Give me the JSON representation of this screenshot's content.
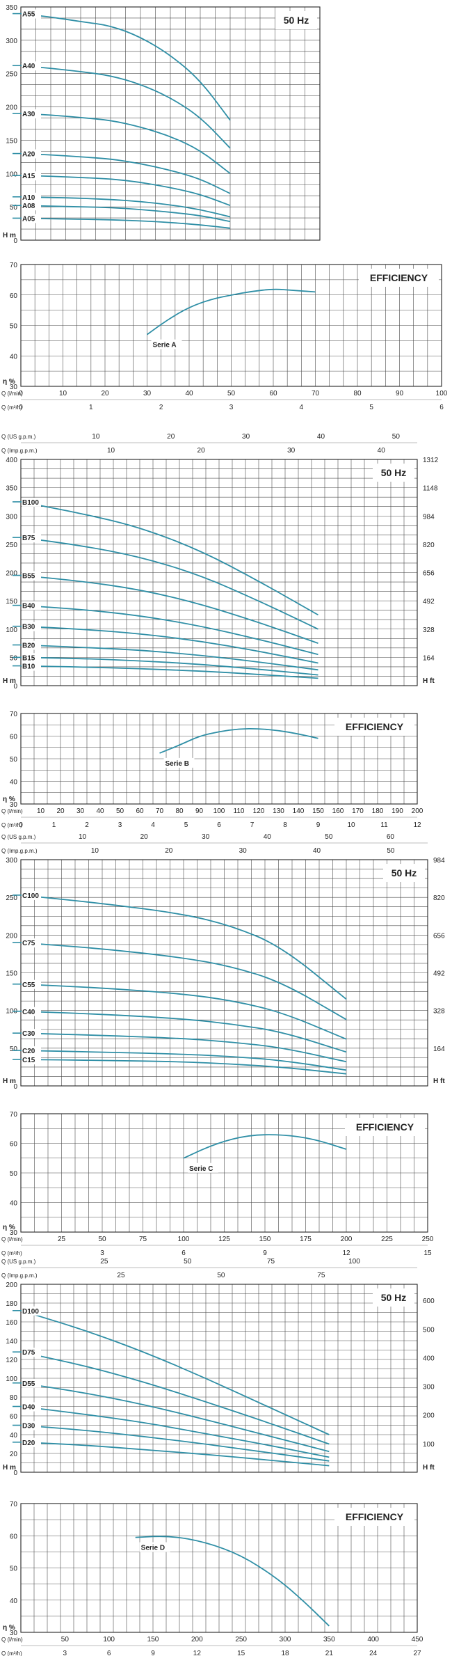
{
  "colors": {
    "curve": "#2f8fa6",
    "grid": "#4a4a4a",
    "text": "#222222",
    "minor": "#7a7a7a"
  },
  "chart_data": [
    {
      "id": "A-head",
      "type": "line",
      "badge": "50 Hz",
      "yunit": "H m",
      "ylim": [
        0,
        350
      ],
      "yticks": [
        0,
        50,
        100,
        150,
        200,
        250,
        300,
        350
      ],
      "xlim": [
        0,
        100
      ],
      "series": [
        {
          "name": "A55",
          "x": [
            0,
            10,
            20,
            30,
            40,
            50,
            60,
            70
          ],
          "values": [
            340,
            335,
            328,
            322,
            305,
            278,
            240,
            180
          ]
        },
        {
          "name": "A40",
          "x": [
            0,
            10,
            20,
            30,
            40,
            50,
            60,
            70
          ],
          "values": [
            262,
            258,
            253,
            247,
            234,
            214,
            185,
            138
          ]
        },
        {
          "name": "A30",
          "x": [
            0,
            10,
            20,
            30,
            40,
            50,
            60,
            70
          ],
          "values": [
            190,
            188,
            184,
            180,
            170,
            156,
            135,
            100
          ]
        },
        {
          "name": "A20",
          "x": [
            0,
            10,
            20,
            30,
            40,
            50,
            60,
            70
          ],
          "values": [
            130,
            128,
            125,
            122,
            115,
            105,
            92,
            70
          ]
        },
        {
          "name": "A15",
          "x": [
            0,
            10,
            20,
            30,
            40,
            50,
            60,
            70
          ],
          "values": [
            97,
            96,
            94,
            92,
            87,
            79,
            69,
            52
          ]
        },
        {
          "name": "A10",
          "x": [
            0,
            10,
            20,
            30,
            40,
            50,
            60,
            70
          ],
          "values": [
            65,
            64,
            63,
            61,
            58,
            53,
            46,
            35
          ]
        },
        {
          "name": "A08",
          "x": [
            0,
            10,
            20,
            30,
            40,
            50,
            60,
            70
          ],
          "values": [
            52,
            51,
            50,
            49,
            46,
            42,
            37,
            28
          ]
        },
        {
          "name": "A05",
          "x": [
            0,
            10,
            20,
            30,
            40,
            50,
            60,
            70
          ],
          "values": [
            33,
            32,
            31.5,
            30.5,
            29,
            26.5,
            23,
            18
          ]
        }
      ]
    },
    {
      "id": "A-eff",
      "type": "line",
      "badge": "EFFICIENCY",
      "yunit": "η %",
      "ylim": [
        30,
        70
      ],
      "yticks": [
        30,
        40,
        50,
        60,
        70
      ],
      "xlim": [
        0,
        100
      ],
      "xunit1": "Q (l/min)",
      "xticks1": [
        0,
        10,
        20,
        30,
        40,
        50,
        60,
        70,
        80,
        90,
        100
      ],
      "xunit2": "Q (m³/h)",
      "xticks2": [
        0,
        1,
        2,
        3,
        4,
        5,
        6
      ],
      "series": [
        {
          "name": "Serie A",
          "x": [
            30,
            35,
            40,
            45,
            50,
            55,
            60,
            65,
            70
          ],
          "values": [
            47,
            52,
            56,
            58.5,
            60,
            61.2,
            62,
            61.5,
            61
          ]
        }
      ]
    },
    {
      "id": "B-head",
      "type": "line",
      "badge": "50 Hz",
      "yunit": "H m",
      "yunitR": "H ft",
      "ylim": [
        0,
        400
      ],
      "yticks": [
        0,
        50,
        100,
        150,
        200,
        250,
        300,
        350,
        400
      ],
      "yticksR": [
        164,
        328,
        492,
        656,
        820,
        984,
        1148,
        1312
      ],
      "xlim": [
        0,
        200
      ],
      "topunit1": "Q (US g.p.m.)",
      "topticks1": [
        10,
        20,
        30,
        40,
        50
      ],
      "topunit2": "Q (Imp.g.p.m.)",
      "topticks2": [
        10,
        20,
        30,
        40
      ],
      "series": [
        {
          "name": "B100",
          "x": [
            0,
            30,
            60,
            90,
            120,
            150
          ],
          "values": [
            325,
            305,
            280,
            240,
            185,
            125
          ]
        },
        {
          "name": "B75",
          "x": [
            0,
            30,
            60,
            90,
            120,
            150
          ],
          "values": [
            262,
            248,
            228,
            196,
            150,
            100
          ]
        },
        {
          "name": "B55",
          "x": [
            0,
            30,
            60,
            90,
            120,
            150
          ],
          "values": [
            195,
            185,
            170,
            145,
            112,
            75
          ]
        },
        {
          "name": "B40",
          "x": [
            0,
            30,
            60,
            90,
            120,
            150
          ],
          "values": [
            142,
            135,
            124,
            106,
            82,
            55
          ]
        },
        {
          "name": "B30",
          "x": [
            0,
            30,
            60,
            90,
            120,
            150
          ],
          "values": [
            105,
            100,
            92,
            79,
            61,
            40
          ]
        },
        {
          "name": "B20",
          "x": [
            0,
            30,
            60,
            90,
            120,
            150
          ],
          "values": [
            72,
            68,
            63,
            54,
            42,
            28
          ]
        },
        {
          "name": "B15",
          "x": [
            0,
            30,
            60,
            90,
            120,
            150
          ],
          "values": [
            50,
            48,
            44,
            38,
            29,
            19
          ]
        },
        {
          "name": "B10",
          "x": [
            0,
            30,
            60,
            90,
            120,
            150
          ],
          "values": [
            35,
            33,
            30,
            26,
            20,
            13
          ]
        }
      ]
    },
    {
      "id": "B-eff",
      "type": "line",
      "badge": "EFFICIENCY",
      "yunit": "η %",
      "ylim": [
        30,
        70
      ],
      "yticks": [
        30,
        40,
        50,
        60,
        70
      ],
      "xlim": [
        0,
        200
      ],
      "xunit1": "Q (l/min)",
      "xticks1": [
        10,
        20,
        30,
        40,
        50,
        60,
        70,
        80,
        90,
        100,
        110,
        120,
        130,
        140,
        150,
        160,
        170,
        180,
        190,
        200
      ],
      "xunit2": "Q (m³/h)",
      "xticks2": [
        0,
        1,
        2,
        3,
        4,
        5,
        6,
        7,
        8,
        9,
        10,
        11,
        12
      ],
      "series": [
        {
          "name": "Serie B",
          "x": [
            70,
            80,
            90,
            100,
            110,
            120,
            130,
            140,
            150
          ],
          "values": [
            52.5,
            56,
            60,
            62,
            63.2,
            63.3,
            62.5,
            61,
            59
          ]
        }
      ]
    },
    {
      "id": "C-head",
      "type": "line",
      "badge": "50 Hz",
      "yunit": "H m",
      "yunitR": "H ft",
      "ylim": [
        0,
        300
      ],
      "yticks": [
        0,
        50,
        100,
        150,
        200,
        250,
        300
      ],
      "yticksR": [
        164,
        328,
        492,
        656,
        820,
        984
      ],
      "xlim": [
        0,
        250
      ],
      "topunit1": "Q (US g.p.m.)",
      "topticks1": [
        10,
        20,
        30,
        40,
        50,
        60
      ],
      "topunit2": "Q (Imp.g.p.m.)",
      "topticks2": [
        10,
        20,
        30,
        40,
        50
      ],
      "series": [
        {
          "name": "C100",
          "x": [
            0,
            50,
            100,
            130,
            160,
            200
          ],
          "values": [
            253,
            242,
            228,
            212,
            185,
            115
          ]
        },
        {
          "name": "C75",
          "x": [
            0,
            50,
            100,
            130,
            160,
            200
          ],
          "values": [
            190,
            182,
            170,
            158,
            138,
            88
          ]
        },
        {
          "name": "C55",
          "x": [
            0,
            50,
            100,
            130,
            160,
            200
          ],
          "values": [
            135,
            130,
            122,
            113,
            98,
            62
          ]
        },
        {
          "name": "C40",
          "x": [
            0,
            50,
            100,
            130,
            160,
            200
          ],
          "values": [
            99,
            95,
            89,
            82,
            72,
            45
          ]
        },
        {
          "name": "C30",
          "x": [
            0,
            50,
            100,
            130,
            160,
            200
          ],
          "values": [
            70,
            67,
            63,
            58,
            51,
            32
          ]
        },
        {
          "name": "C20",
          "x": [
            0,
            50,
            100,
            130,
            160,
            200
          ],
          "values": [
            47,
            45,
            42,
            39,
            34,
            21
          ]
        },
        {
          "name": "C15",
          "x": [
            0,
            50,
            100,
            130,
            160,
            200
          ],
          "values": [
            35,
            34,
            32,
            29,
            25,
            16
          ]
        }
      ]
    },
    {
      "id": "C-eff",
      "type": "line",
      "badge": "EFFICIENCY",
      "yunit": "η %",
      "ylim": [
        30,
        70
      ],
      "yticks": [
        30,
        40,
        50,
        60,
        70
      ],
      "xlim": [
        0,
        250
      ],
      "xunit1": "Q (l/min)",
      "xticks1": [
        25,
        50,
        75,
        100,
        125,
        150,
        175,
        200,
        225,
        250
      ],
      "xunit2": "Q (m³/h)",
      "xticks2": [
        3,
        6,
        9,
        12,
        15
      ],
      "series": [
        {
          "name": "Serie C",
          "x": [
            100,
            120,
            140,
            160,
            180,
            200
          ],
          "values": [
            55,
            60,
            62.8,
            63,
            61.5,
            58
          ]
        }
      ]
    },
    {
      "id": "D-head",
      "type": "line",
      "badge": "50 Hz",
      "yunit": "H m",
      "yunitR": "H ft",
      "ylim": [
        0,
        200
      ],
      "yticks": [
        0,
        20,
        40,
        60,
        80,
        100,
        120,
        140,
        160,
        180,
        200
      ],
      "yticksR": [
        100,
        200,
        300,
        400,
        500,
        600
      ],
      "xlim": [
        0,
        450
      ],
      "topunit1": "Q (US g.p.m.)",
      "topticks1": [
        25,
        50,
        75,
        100
      ],
      "topunit2": "Q (Imp.g.p.m.)",
      "topticks2": [
        25,
        50,
        75
      ],
      "series": [
        {
          "name": "D100",
          "x": [
            0,
            70,
            140,
            210,
            280,
            350
          ],
          "values": [
            172,
            152,
            128,
            100,
            70,
            40
          ]
        },
        {
          "name": "D75",
          "x": [
            0,
            70,
            140,
            210,
            280,
            350
          ],
          "values": [
            128,
            114,
            96,
            75,
            53,
            30
          ]
        },
        {
          "name": "D55",
          "x": [
            0,
            70,
            140,
            210,
            280,
            350
          ],
          "values": [
            95,
            85,
            72,
            56,
            39,
            22
          ]
        },
        {
          "name": "D40",
          "x": [
            0,
            70,
            140,
            210,
            280,
            350
          ],
          "values": [
            70,
            62,
            53,
            41,
            29,
            16
          ]
        },
        {
          "name": "D30",
          "x": [
            0,
            70,
            140,
            210,
            280,
            350
          ],
          "values": [
            50,
            45,
            38,
            30,
            21,
            12
          ]
        },
        {
          "name": "D20",
          "x": [
            0,
            70,
            140,
            210,
            280,
            350
          ],
          "values": [
            32,
            29,
            24,
            19,
            13,
            7
          ]
        }
      ]
    },
    {
      "id": "D-eff",
      "type": "line",
      "badge": "EFFICIENCY",
      "yunit": "η %",
      "ylim": [
        30,
        70
      ],
      "yticks": [
        30,
        40,
        50,
        60,
        70
      ],
      "xlim": [
        0,
        450
      ],
      "xunit1": "Q (l/min)",
      "xticks1": [
        50,
        100,
        150,
        200,
        250,
        300,
        350,
        400,
        450
      ],
      "xunit2": "Q (m³/h)",
      "xticks2": [
        3,
        6,
        9,
        12,
        15,
        18,
        21,
        24,
        27
      ],
      "series": [
        {
          "name": "Serie D",
          "x": [
            130,
            170,
            210,
            250,
            290,
            320,
            350
          ],
          "values": [
            59.5,
            60,
            58,
            54,
            47,
            40,
            32
          ]
        }
      ]
    }
  ]
}
